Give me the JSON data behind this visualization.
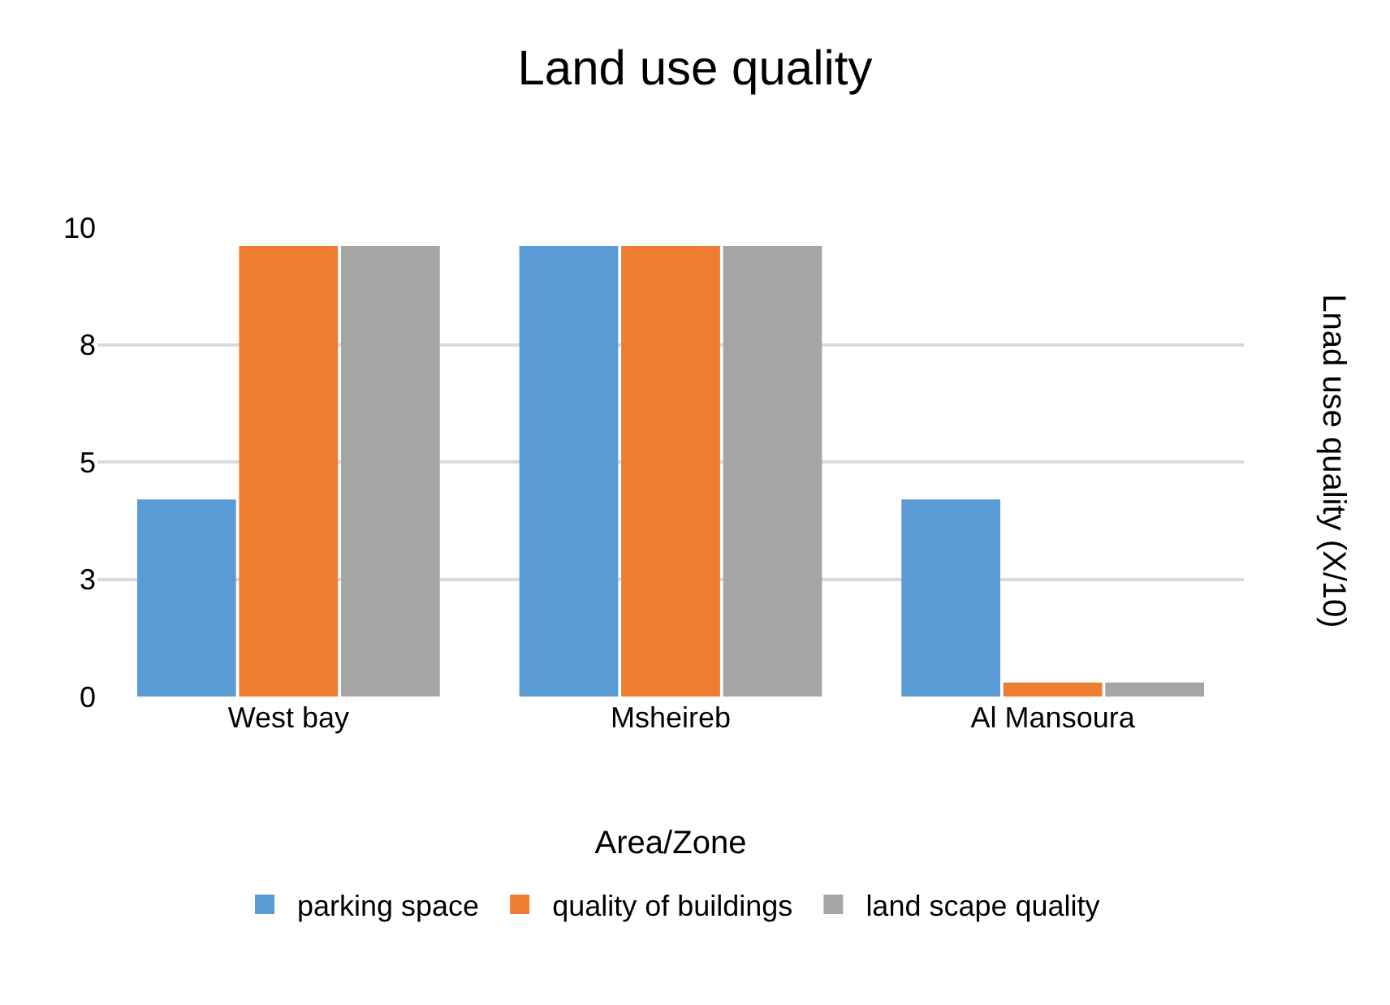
{
  "chart_data": {
    "type": "bar",
    "title": "Land use quality",
    "xlabel": "Area/Zone",
    "ylabel": "Lnad use quality (X/10)",
    "categories": [
      "West bay",
      "Msheireb",
      "Al Mansoura"
    ],
    "series": [
      {
        "name": "parking space",
        "color": "#5b9bd5",
        "values": [
          4.2,
          9.6,
          4.2
        ]
      },
      {
        "name": "quality of buildings",
        "color": "#ed7d31",
        "values": [
          9.6,
          9.6,
          0.3
        ]
      },
      {
        "name": "land scape quality",
        "color": "#a5a5a5",
        "values": [
          9.6,
          9.6,
          0.3
        ]
      }
    ],
    "ylim": [
      0,
      10
    ],
    "yticks": [
      {
        "value": 0,
        "label": "0"
      },
      {
        "value": 2.5,
        "label": "3"
      },
      {
        "value": 5,
        "label": "5"
      },
      {
        "value": 7.5,
        "label": "8"
      },
      {
        "value": 10,
        "label": "10"
      }
    ],
    "grid": "y",
    "legend": "bottom"
  }
}
